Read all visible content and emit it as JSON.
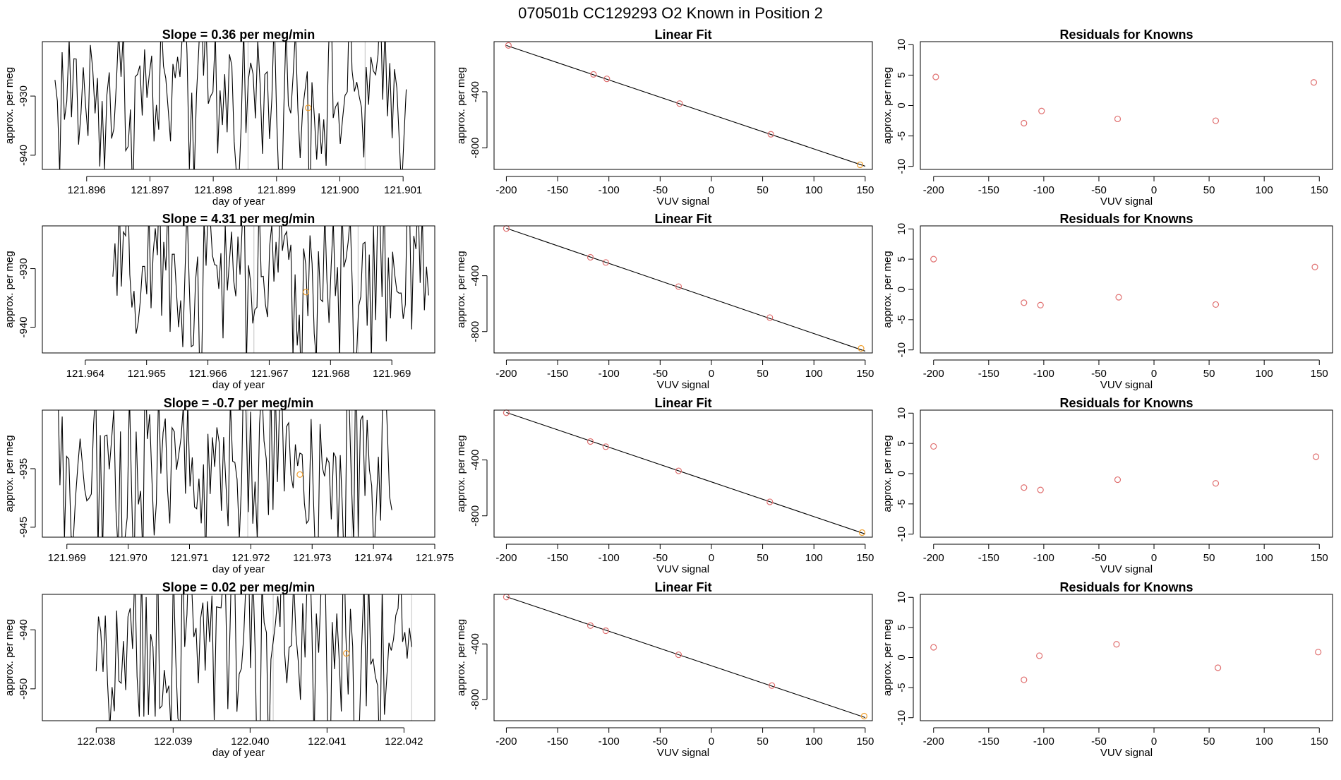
{
  "page": {
    "title": "070501b      CC129293    O2 Known in Position  2"
  },
  "colors": {
    "line": "#000000",
    "known_point": "#e07070",
    "highlight_point": "#f0a030",
    "marker_line": "#cccccc"
  },
  "chart_data": [
    {
      "type": "line",
      "row": 1,
      "col": 1,
      "title": "Slope =  0.36  per meg/min",
      "xlabel": "day of year",
      "ylabel": "approx. per meg",
      "xlim": [
        121.8953,
        121.9015
      ],
      "ylim": [
        -942.4,
        -920.8
      ],
      "xticks": [
        121.896,
        121.897,
        121.898,
        121.899,
        121.9,
        121.901
      ],
      "xtick_labels": [
        "121.896",
        "121.897",
        "121.898",
        "121.899",
        "121.900",
        "121.901"
      ],
      "yticks": [
        -930,
        -940
      ],
      "ytick_labels": [
        "-930",
        "-940"
      ],
      "x_start": 121.8955,
      "x_end": 121.90105,
      "n_points": 150,
      "center": -930,
      "amplitude": 8,
      "highlight": {
        "x": 121.8995,
        "y": -932
      },
      "markers": [
        121.89855,
        121.9004
      ]
    },
    {
      "type": "scatter_fit",
      "row": 1,
      "col": 2,
      "title": "Linear Fit",
      "xlabel": "VUV signal",
      "ylabel": "approx. per meg",
      "xlim": [
        -212,
        157
      ],
      "ylim": [
        -953,
        -43
      ],
      "xticks": [
        -200,
        -150,
        -100,
        -50,
        0,
        50,
        100,
        150
      ],
      "xtick_labels": [
        "-200",
        "-150",
        "-100",
        "-50",
        "0",
        "50",
        "100",
        "150"
      ],
      "yticks": [
        -400,
        -800
      ],
      "ytick_labels": [
        "-400",
        "-800"
      ],
      "fit": {
        "x": [
          -200,
          150
        ],
        "y": [
          -70,
          -930
        ]
      },
      "points": [
        {
          "x": -198,
          "y": -70,
          "hl": false
        },
        {
          "x": -115,
          "y": -276,
          "hl": false
        },
        {
          "x": -102,
          "y": -308,
          "hl": false
        },
        {
          "x": -31,
          "y": -484,
          "hl": false
        },
        {
          "x": 58,
          "y": -703,
          "hl": false
        },
        {
          "x": 145,
          "y": -920,
          "hl": true
        }
      ]
    },
    {
      "type": "scatter",
      "row": 1,
      "col": 3,
      "title": "Residuals for Knowns",
      "xlabel": "VUV signal",
      "ylabel": "approx. per meg",
      "xlim": [
        -212,
        162
      ],
      "ylim": [
        -10.5,
        10.5
      ],
      "xticks": [
        -200,
        -150,
        -100,
        -50,
        0,
        50,
        100,
        150
      ],
      "xtick_labels": [
        "-200",
        "-150",
        "-100",
        "-50",
        "0",
        "50",
        "100",
        "150"
      ],
      "yticks": [
        10,
        5,
        0,
        -5,
        -10
      ],
      "ytick_labels": [
        "10",
        "5",
        "0",
        "-5",
        "-10"
      ],
      "points": [
        {
          "x": -198,
          "y": 4.7
        },
        {
          "x": -118,
          "y": -2.9
        },
        {
          "x": -102,
          "y": -0.9
        },
        {
          "x": -33,
          "y": -2.2
        },
        {
          "x": 56,
          "y": -2.5
        },
        {
          "x": 145,
          "y": 3.8
        }
      ]
    },
    {
      "type": "line",
      "row": 2,
      "col": 1,
      "title": "Slope =  4.31  per meg/min",
      "xlabel": "day of year",
      "ylabel": "approx. per meg",
      "xlim": [
        121.9633,
        121.9697
      ],
      "ylim": [
        -944.4,
        -922.7
      ],
      "xticks": [
        121.964,
        121.965,
        121.966,
        121.967,
        121.968,
        121.969
      ],
      "xtick_labels": [
        "121.964",
        "121.965",
        "121.966",
        "121.967",
        "121.968",
        "121.969"
      ],
      "yticks": [
        -930,
        -940
      ],
      "ytick_labels": [
        "-930",
        "-940"
      ],
      "x_start": 121.96445,
      "x_end": 121.9696,
      "n_points": 150,
      "center": -932,
      "amplitude": 8,
      "highlight": {
        "x": 121.9676,
        "y": -934
      },
      "markers": [
        121.96675,
        121.96845
      ]
    },
    {
      "type": "scatter_fit",
      "row": 2,
      "col": 2,
      "title": "Linear Fit",
      "xlabel": "VUV signal",
      "ylabel": "approx. per meg",
      "xlim": [
        -212,
        157
      ],
      "ylim": [
        -953,
        -43
      ],
      "xticks": [
        -200,
        -150,
        -100,
        -50,
        0,
        50,
        100,
        150
      ],
      "xtick_labels": [
        "-200",
        "-150",
        "-100",
        "-50",
        "0",
        "50",
        "100",
        "150"
      ],
      "yticks": [
        -400,
        -800
      ],
      "ytick_labels": [
        "-400",
        "-800"
      ],
      "fit": {
        "x": [
          -200,
          150
        ],
        "y": [
          -60,
          -940
        ]
      },
      "points": [
        {
          "x": -200,
          "y": -62,
          "hl": false
        },
        {
          "x": -118,
          "y": -268,
          "hl": false
        },
        {
          "x": -103,
          "y": -305,
          "hl": false
        },
        {
          "x": -32,
          "y": -478,
          "hl": false
        },
        {
          "x": 57,
          "y": -700,
          "hl": false
        },
        {
          "x": 146,
          "y": -920,
          "hl": true
        }
      ]
    },
    {
      "type": "scatter",
      "row": 2,
      "col": 3,
      "title": "Residuals for Knowns",
      "xlabel": "VUV signal",
      "ylabel": "approx. per meg",
      "xlim": [
        -212,
        162
      ],
      "ylim": [
        -10.5,
        10.5
      ],
      "xticks": [
        -200,
        -150,
        -100,
        -50,
        0,
        50,
        100,
        150
      ],
      "xtick_labels": [
        "-200",
        "-150",
        "-100",
        "-50",
        "0",
        "50",
        "100",
        "150"
      ],
      "yticks": [
        10,
        5,
        0,
        -5,
        -10
      ],
      "ytick_labels": [
        "10",
        "5",
        "0",
        "-5",
        "-10"
      ],
      "points": [
        {
          "x": -200,
          "y": 5.0
        },
        {
          "x": -118,
          "y": -2.2
        },
        {
          "x": -103,
          "y": -2.6
        },
        {
          "x": -32,
          "y": -1.3
        },
        {
          "x": 56,
          "y": -2.5
        },
        {
          "x": 146,
          "y": 3.7
        }
      ]
    },
    {
      "type": "line",
      "row": 3,
      "col": 1,
      "title": "Slope =  -0.7  per meg/min",
      "xlabel": "day of year",
      "ylabel": "approx. per meg",
      "xlim": [
        121.9686,
        121.975
      ],
      "ylim": [
        -946.7,
        -925.0
      ],
      "xticks": [
        121.969,
        121.97,
        121.971,
        121.972,
        121.973,
        121.974,
        121.975
      ],
      "xtick_labels": [
        "121.969",
        "121.970",
        "121.971",
        "121.972",
        "121.973",
        "121.974",
        "121.975"
      ],
      "yticks": [
        -935,
        -945
      ],
      "ytick_labels": [
        "-935",
        "-945"
      ],
      "x_start": 121.96885,
      "x_end": 121.9743,
      "n_points": 150,
      "center": -935,
      "amplitude": 9,
      "highlight": {
        "x": 121.9728,
        "y": -936
      },
      "markers": [
        121.97195,
        121.97365
      ]
    },
    {
      "type": "scatter_fit",
      "row": 3,
      "col": 2,
      "title": "Linear Fit",
      "xlabel": "VUV signal",
      "ylabel": "approx. per meg",
      "xlim": [
        -212,
        157
      ],
      "ylim": [
        -953,
        -43
      ],
      "xticks": [
        -200,
        -150,
        -100,
        -50,
        0,
        50,
        100,
        150
      ],
      "xtick_labels": [
        "-200",
        "-150",
        "-100",
        "-50",
        "0",
        "50",
        "100",
        "150"
      ],
      "yticks": [
        -400,
        -800
      ],
      "ytick_labels": [
        "-400",
        "-800"
      ],
      "fit": {
        "x": [
          -200,
          150
        ],
        "y": [
          -60,
          -930
        ]
      },
      "points": [
        {
          "x": -200,
          "y": -62,
          "hl": false
        },
        {
          "x": -118,
          "y": -268,
          "hl": false
        },
        {
          "x": -103,
          "y": -305,
          "hl": false
        },
        {
          "x": -32,
          "y": -478,
          "hl": false
        },
        {
          "x": 57,
          "y": -700,
          "hl": false
        },
        {
          "x": 147,
          "y": -920,
          "hl": true
        }
      ]
    },
    {
      "type": "scatter",
      "row": 3,
      "col": 3,
      "title": "Residuals for Knowns",
      "xlabel": "VUV signal",
      "ylabel": "approx. per meg",
      "xlim": [
        -212,
        162
      ],
      "ylim": [
        -10.5,
        10.5
      ],
      "xticks": [
        -200,
        -150,
        -100,
        -50,
        0,
        50,
        100,
        150
      ],
      "xtick_labels": [
        "-200",
        "-150",
        "-100",
        "-50",
        "0",
        "50",
        "100",
        "150"
      ],
      "yticks": [
        10,
        5,
        0,
        -5,
        -10
      ],
      "ytick_labels": [
        "10",
        "5",
        "0",
        "-5",
        "-10"
      ],
      "points": [
        {
          "x": -200,
          "y": 4.5
        },
        {
          "x": -118,
          "y": -2.3
        },
        {
          "x": -103,
          "y": -2.7
        },
        {
          "x": -33,
          "y": -1.0
        },
        {
          "x": 56,
          "y": -1.6
        },
        {
          "x": 147,
          "y": 2.8
        }
      ]
    },
    {
      "type": "line",
      "row": 4,
      "col": 1,
      "title": "Slope =  0.02  per meg/min",
      "xlabel": "day of year",
      "ylabel": "approx. per meg",
      "xlim": [
        122.0373,
        122.0424
      ],
      "ylim": [
        -955.4,
        -934.0
      ],
      "xticks": [
        122.038,
        122.039,
        122.04,
        122.041,
        122.042
      ],
      "xtick_labels": [
        "122.038",
        "122.039",
        "122.040",
        "122.041",
        "122.042"
      ],
      "yticks": [
        -940,
        -950
      ],
      "ytick_labels": [
        "-940",
        "-950"
      ],
      "x_start": 122.038,
      "x_end": 122.0421,
      "n_points": 140,
      "center": -943,
      "amplitude": 9,
      "highlight": {
        "x": 122.04125,
        "y": -944
      },
      "markers": [
        122.0403,
        122.0421
      ]
    },
    {
      "type": "scatter_fit",
      "row": 4,
      "col": 2,
      "title": "Linear Fit",
      "xlabel": "VUV signal",
      "ylabel": "approx. per meg",
      "xlim": [
        -212,
        157
      ],
      "ylim": [
        -953,
        -43
      ],
      "xticks": [
        -200,
        -150,
        -100,
        -50,
        0,
        50,
        100,
        150
      ],
      "xtick_labels": [
        "-200",
        "-150",
        "-100",
        "-50",
        "0",
        "50",
        "100",
        "150"
      ],
      "yticks": [
        -400,
        -800
      ],
      "ytick_labels": [
        "-400",
        "-800"
      ],
      "fit": {
        "x": [
          -200,
          150
        ],
        "y": [
          -60,
          -930
        ]
      },
      "points": [
        {
          "x": -200,
          "y": -62,
          "hl": false
        },
        {
          "x": -118,
          "y": -268,
          "hl": false
        },
        {
          "x": -103,
          "y": -305,
          "hl": false
        },
        {
          "x": -32,
          "y": -478,
          "hl": false
        },
        {
          "x": 59,
          "y": -700,
          "hl": false
        },
        {
          "x": 149,
          "y": -920,
          "hl": true
        }
      ]
    },
    {
      "type": "scatter",
      "row": 4,
      "col": 3,
      "title": "Residuals for Knowns",
      "xlabel": "VUV signal",
      "ylabel": "approx. per meg",
      "xlim": [
        -212,
        162
      ],
      "ylim": [
        -10.5,
        10.5
      ],
      "xticks": [
        -200,
        -150,
        -100,
        -50,
        0,
        50,
        100,
        150
      ],
      "xtick_labels": [
        "-200",
        "-150",
        "-100",
        "-50",
        "0",
        "50",
        "100",
        "150"
      ],
      "yticks": [
        10,
        5,
        0,
        -5,
        -10
      ],
      "ytick_labels": [
        "10",
        "5",
        "0",
        "-5",
        "-10"
      ],
      "points": [
        {
          "x": -200,
          "y": 1.7
        },
        {
          "x": -118,
          "y": -3.7
        },
        {
          "x": -104,
          "y": 0.3
        },
        {
          "x": -34,
          "y": 2.2
        },
        {
          "x": 58,
          "y": -1.7
        },
        {
          "x": 149,
          "y": 0.9
        }
      ]
    }
  ]
}
